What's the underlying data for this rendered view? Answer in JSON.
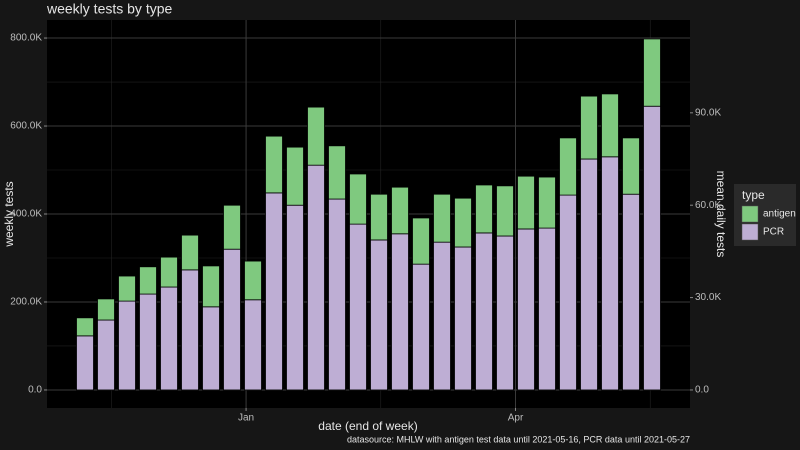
{
  "chart_data": {
    "type": "stacked_bar",
    "title": "weekly tests by type",
    "x_label": "date (end of week)",
    "y_label": "weekly tests",
    "y2_label": "mean daily tests",
    "caption": "datasource: MHLW with antigen test data until 2021-05-16, PCR data until 2021-05-27",
    "legend_title": "type",
    "categories": [
      null,
      null,
      null,
      null,
      null,
      null,
      null,
      null,
      null,
      null,
      null,
      null,
      null,
      null,
      null,
      null,
      null,
      null,
      null,
      null,
      null,
      null,
      null,
      null,
      null,
      null,
      null,
      null
    ],
    "xticks": [
      {
        "value": 7.67,
        "label": "Jan"
      },
      {
        "value": 20.5,
        "label": "Apr"
      }
    ],
    "series": [
      {
        "name": "PCR",
        "color": "#beaed4",
        "values": [
          123000,
          159000,
          202000,
          218000,
          234000,
          273000,
          189000,
          320000,
          205000,
          448000,
          420000,
          511000,
          434000,
          377000,
          341000,
          355000,
          286000,
          336000,
          325000,
          357000,
          350000,
          366000,
          368000,
          443000,
          525000,
          530000,
          445000,
          645000
        ]
      },
      {
        "name": "antigen",
        "color": "#7fc97f",
        "values": [
          41000,
          48000,
          57000,
          62000,
          68000,
          79000,
          93000,
          100000,
          88000,
          129000,
          132000,
          132000,
          121000,
          114000,
          104000,
          106000,
          105000,
          109000,
          111000,
          109000,
          114000,
          120000,
          116000,
          130000,
          143000,
          143000,
          128000,
          153000
        ]
      }
    ],
    "ylim": [
      -41000,
      841000
    ],
    "yticks": [
      {
        "value": 0,
        "label": "0.0"
      },
      {
        "value": 200000,
        "label": "200.0K"
      },
      {
        "value": 400000,
        "label": "400.0K"
      },
      {
        "value": 600000,
        "label": "600.0K"
      },
      {
        "value": 800000,
        "label": "800.0K"
      }
    ],
    "y2lim": [
      -5857,
      120143
    ],
    "y2ticks": [
      {
        "value": 0,
        "label": "0.0"
      },
      {
        "value": 30000,
        "label": "30.0K"
      },
      {
        "value": 60000,
        "label": "60.0K"
      },
      {
        "value": 90000,
        "label": "90.0K"
      }
    ],
    "grid": true
  }
}
